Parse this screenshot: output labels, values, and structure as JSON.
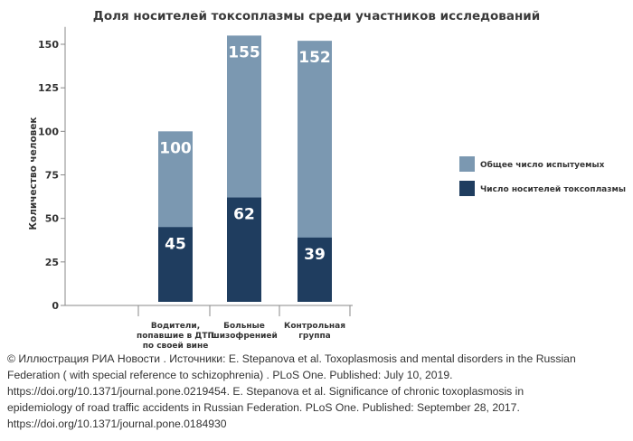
{
  "chart_data": {
    "type": "bar",
    "title": "Доля носителей токсоплазмы среди участников исследований",
    "ylabel": "Количество человек",
    "ylim": [
      0,
      160
    ],
    "yticks": [
      0,
      25,
      50,
      75,
      100,
      125,
      150
    ],
    "categories": [
      [
        "Водители,",
        "попавшие в ДТП",
        "по своей вине"
      ],
      [
        "Больные",
        "шизофренией"
      ],
      [
        "Контрольная",
        "группа"
      ]
    ],
    "series": [
      {
        "name": "Общее число испытуемых",
        "values": [
          100,
          155,
          152
        ],
        "color": "#7b98b1"
      },
      {
        "name": "Число носителей токсоплазмы",
        "values": [
          45,
          62,
          39
        ],
        "color": "#1f3d5f"
      }
    ],
    "legend_position": "right",
    "grid": false
  },
  "source": {
    "lines": [
      "© Иллюстрация РИА Новости . Источники: E. Stepanova et al. Toxoplasmosis and mental disorders in the Russian",
      "Federation  ( with special reference to schizophrenia)  . PLoS One. Published: July 10, 2019.",
      "https://doi.org/10.1371/journal.pone.0219454. E. Stepanova et al. Significance of chronic toxoplasmosis in",
      "epidemiology of road traffic accidents in Russian Federation. PLoS One. Published: September 28, 2017.",
      "https://doi.org/10.1371/journal.pone.0184930"
    ]
  }
}
